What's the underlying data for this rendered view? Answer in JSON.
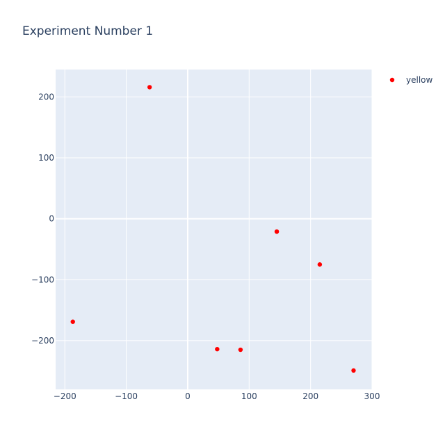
{
  "chart_data": {
    "type": "scatter",
    "title": "Experiment Number 1",
    "xlabel": "",
    "ylabel": "",
    "xlim": [
      -215,
      300
    ],
    "ylim": [
      -280,
      245
    ],
    "xticks": [
      -200,
      -100,
      0,
      100,
      200,
      300
    ],
    "yticks": [
      -200,
      -100,
      0,
      100,
      200
    ],
    "xtick_labels": [
      "−200",
      "−100",
      "0",
      "100",
      "200",
      "300"
    ],
    "ytick_labels": [
      "−200",
      "−100",
      "0",
      "100",
      "200"
    ],
    "grid": true,
    "legend_position": "top-right",
    "series": [
      {
        "name": "yellow",
        "color": "#ff0000",
        "x": [
          -62,
          -187,
          48,
          86,
          145,
          215,
          270
        ],
        "y": [
          216,
          -169,
          -214,
          -215,
          -21,
          -75,
          -249
        ]
      }
    ]
  }
}
